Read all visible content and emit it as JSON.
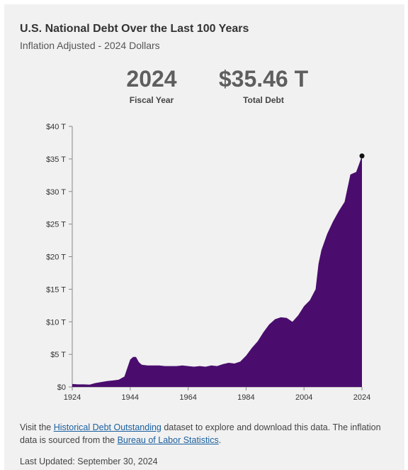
{
  "header": {
    "title": "U.S. National Debt Over the Last 100 Years",
    "subtitle": "Inflation Adjusted - 2024 Dollars"
  },
  "stats": {
    "year_value": "2024",
    "year_label": "Fiscal Year",
    "debt_value": "$35.46 T",
    "debt_label": "Total Debt"
  },
  "colors": {
    "area": "#4a0d6e",
    "marker": "#111111",
    "axis": "#888888"
  },
  "chart_data": {
    "type": "area",
    "xlabel": "",
    "ylabel": "",
    "xlim": [
      1924,
      2024
    ],
    "ylim": [
      0,
      40
    ],
    "x_ticks": [
      1924,
      1944,
      1964,
      1984,
      2004,
      2024
    ],
    "y_ticks": [
      0,
      5,
      10,
      15,
      20,
      25,
      30,
      35,
      40
    ],
    "y_tick_labels": [
      "$0",
      "$5 T",
      "$10 T",
      "$15 T",
      "$20 T",
      "$25 T",
      "$30 T",
      "$35 T",
      "$40 T"
    ],
    "series": [
      {
        "x": [
          1924,
          1926,
          1928,
          1930,
          1932,
          1934,
          1936,
          1938,
          1940,
          1942,
          1943,
          1944,
          1945,
          1946,
          1947,
          1948,
          1950,
          1952,
          1954,
          1956,
          1958,
          1960,
          1962,
          1964,
          1966,
          1968,
          1970,
          1972,
          1974,
          1976,
          1978,
          1980,
          1982,
          1984,
          1986,
          1988,
          1990,
          1992,
          1994,
          1996,
          1998,
          2000,
          2002,
          2004,
          2006,
          2008,
          2009,
          2010,
          2012,
          2014,
          2016,
          2018,
          2020,
          2021,
          2022,
          2023,
          2024
        ],
        "values": [
          0.45,
          0.4,
          0.4,
          0.35,
          0.6,
          0.75,
          0.9,
          1.0,
          1.1,
          1.6,
          2.9,
          4.2,
          4.6,
          4.6,
          3.8,
          3.4,
          3.3,
          3.3,
          3.3,
          3.2,
          3.2,
          3.2,
          3.3,
          3.2,
          3.1,
          3.2,
          3.1,
          3.3,
          3.2,
          3.5,
          3.7,
          3.6,
          3.9,
          4.8,
          6.0,
          7.0,
          8.4,
          9.6,
          10.4,
          10.7,
          10.6,
          10.0,
          11.0,
          12.4,
          13.3,
          15.0,
          18.9,
          21.0,
          23.5,
          25.4,
          27.0,
          28.4,
          32.6,
          32.8,
          33.0,
          34.2,
          35.46
        ]
      }
    ],
    "highlight": {
      "x": 2024,
      "y": 35.46
    }
  },
  "footer": {
    "prefix": "Visit the ",
    "link1": "Historical Debt Outstanding",
    "middle": " dataset to explore and download this data. The inflation data is sourced from the ",
    "link2": "Bureau of Labor Statistics",
    "suffix": ".",
    "updated": "Last Updated: September 30, 2024"
  }
}
